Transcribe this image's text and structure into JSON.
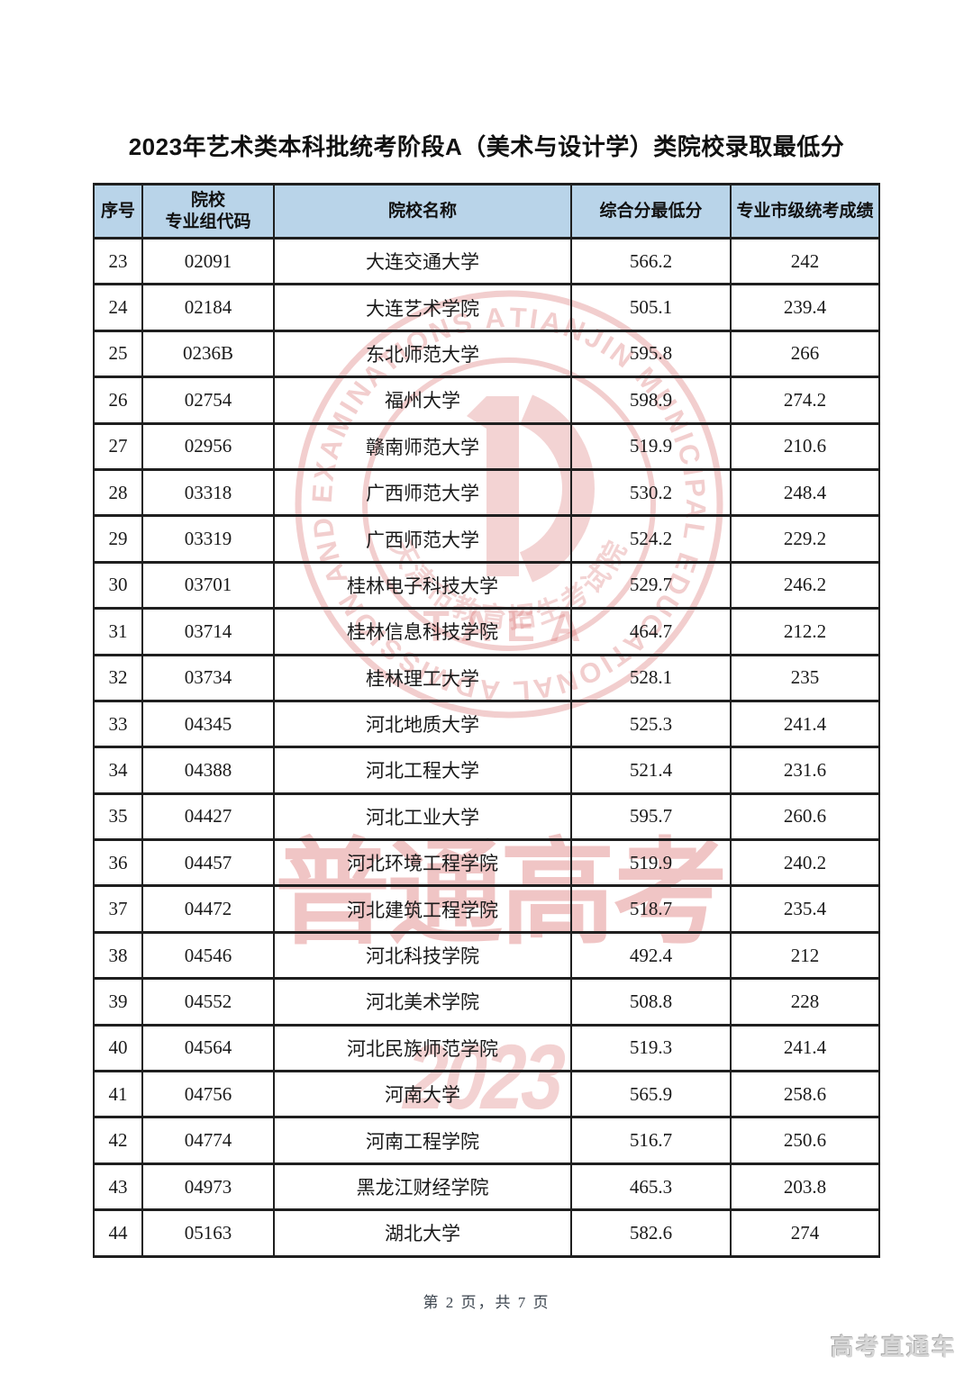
{
  "page": {
    "title": "2023年艺术类本科批统考阶段A（美术与设计学）类院校录取最低分",
    "footer": "第 2 页，共 7 页",
    "brand": "高考直通车"
  },
  "table": {
    "headers": {
      "seq": "序号",
      "code_line1": "院校",
      "code_line2": "专业组代码",
      "name": "院校名称",
      "min_score": "综合分最低分",
      "exam_score": "专业市级统考成绩"
    },
    "rows": [
      [
        "23",
        "02091",
        "大连交通大学",
        "566.2",
        "242"
      ],
      [
        "24",
        "02184",
        "大连艺术学院",
        "505.1",
        "239.4"
      ],
      [
        "25",
        "0236B",
        "东北师范大学",
        "595.8",
        "266"
      ],
      [
        "26",
        "02754",
        "福州大学",
        "598.9",
        "274.2"
      ],
      [
        "27",
        "02956",
        "赣南师范大学",
        "519.9",
        "210.6"
      ],
      [
        "28",
        "03318",
        "广西师范大学",
        "530.2",
        "248.4"
      ],
      [
        "29",
        "03319",
        "广西师范大学",
        "524.2",
        "229.2"
      ],
      [
        "30",
        "03701",
        "桂林电子科技大学",
        "529.7",
        "246.2"
      ],
      [
        "31",
        "03714",
        "桂林信息科技学院",
        "464.7",
        "212.2"
      ],
      [
        "32",
        "03734",
        "桂林理工大学",
        "528.1",
        "235"
      ],
      [
        "33",
        "04345",
        "河北地质大学",
        "525.3",
        "241.4"
      ],
      [
        "34",
        "04388",
        "河北工程大学",
        "521.4",
        "231.6"
      ],
      [
        "35",
        "04427",
        "河北工业大学",
        "595.7",
        "260.6"
      ],
      [
        "36",
        "04457",
        "河北环境工程学院",
        "519.9",
        "240.2"
      ],
      [
        "37",
        "04472",
        "河北建筑工程学院",
        "518.7",
        "235.4"
      ],
      [
        "38",
        "04546",
        "河北科技学院",
        "492.4",
        "212"
      ],
      [
        "39",
        "04552",
        "河北美术学院",
        "508.8",
        "228"
      ],
      [
        "40",
        "04564",
        "河北民族师范学院",
        "519.3",
        "241.4"
      ],
      [
        "41",
        "04756",
        "河南大学",
        "565.9",
        "258.6"
      ],
      [
        "42",
        "04774",
        "河南工程学院",
        "516.7",
        "250.6"
      ],
      [
        "43",
        "04973",
        "黑龙江财经学院",
        "465.3",
        "203.8"
      ],
      [
        "44",
        "05163",
        "湖北大学",
        "582.6",
        "274"
      ]
    ]
  },
  "watermark": {
    "seal_ring_text": "TIANJIN MUNICIPAL EDUCATIONAL ADMISSION AND EXAMINATIONS AUTHORITY",
    "seal_acronym": "TAEA",
    "seal_cn_text": "天津市教育招生考试院",
    "big_text": "普通高考",
    "year_text": "2023"
  },
  "colors": {
    "header_bg": "#b9d4e9",
    "border": "#1f1f1f",
    "watermark_pink": "#d86666"
  }
}
